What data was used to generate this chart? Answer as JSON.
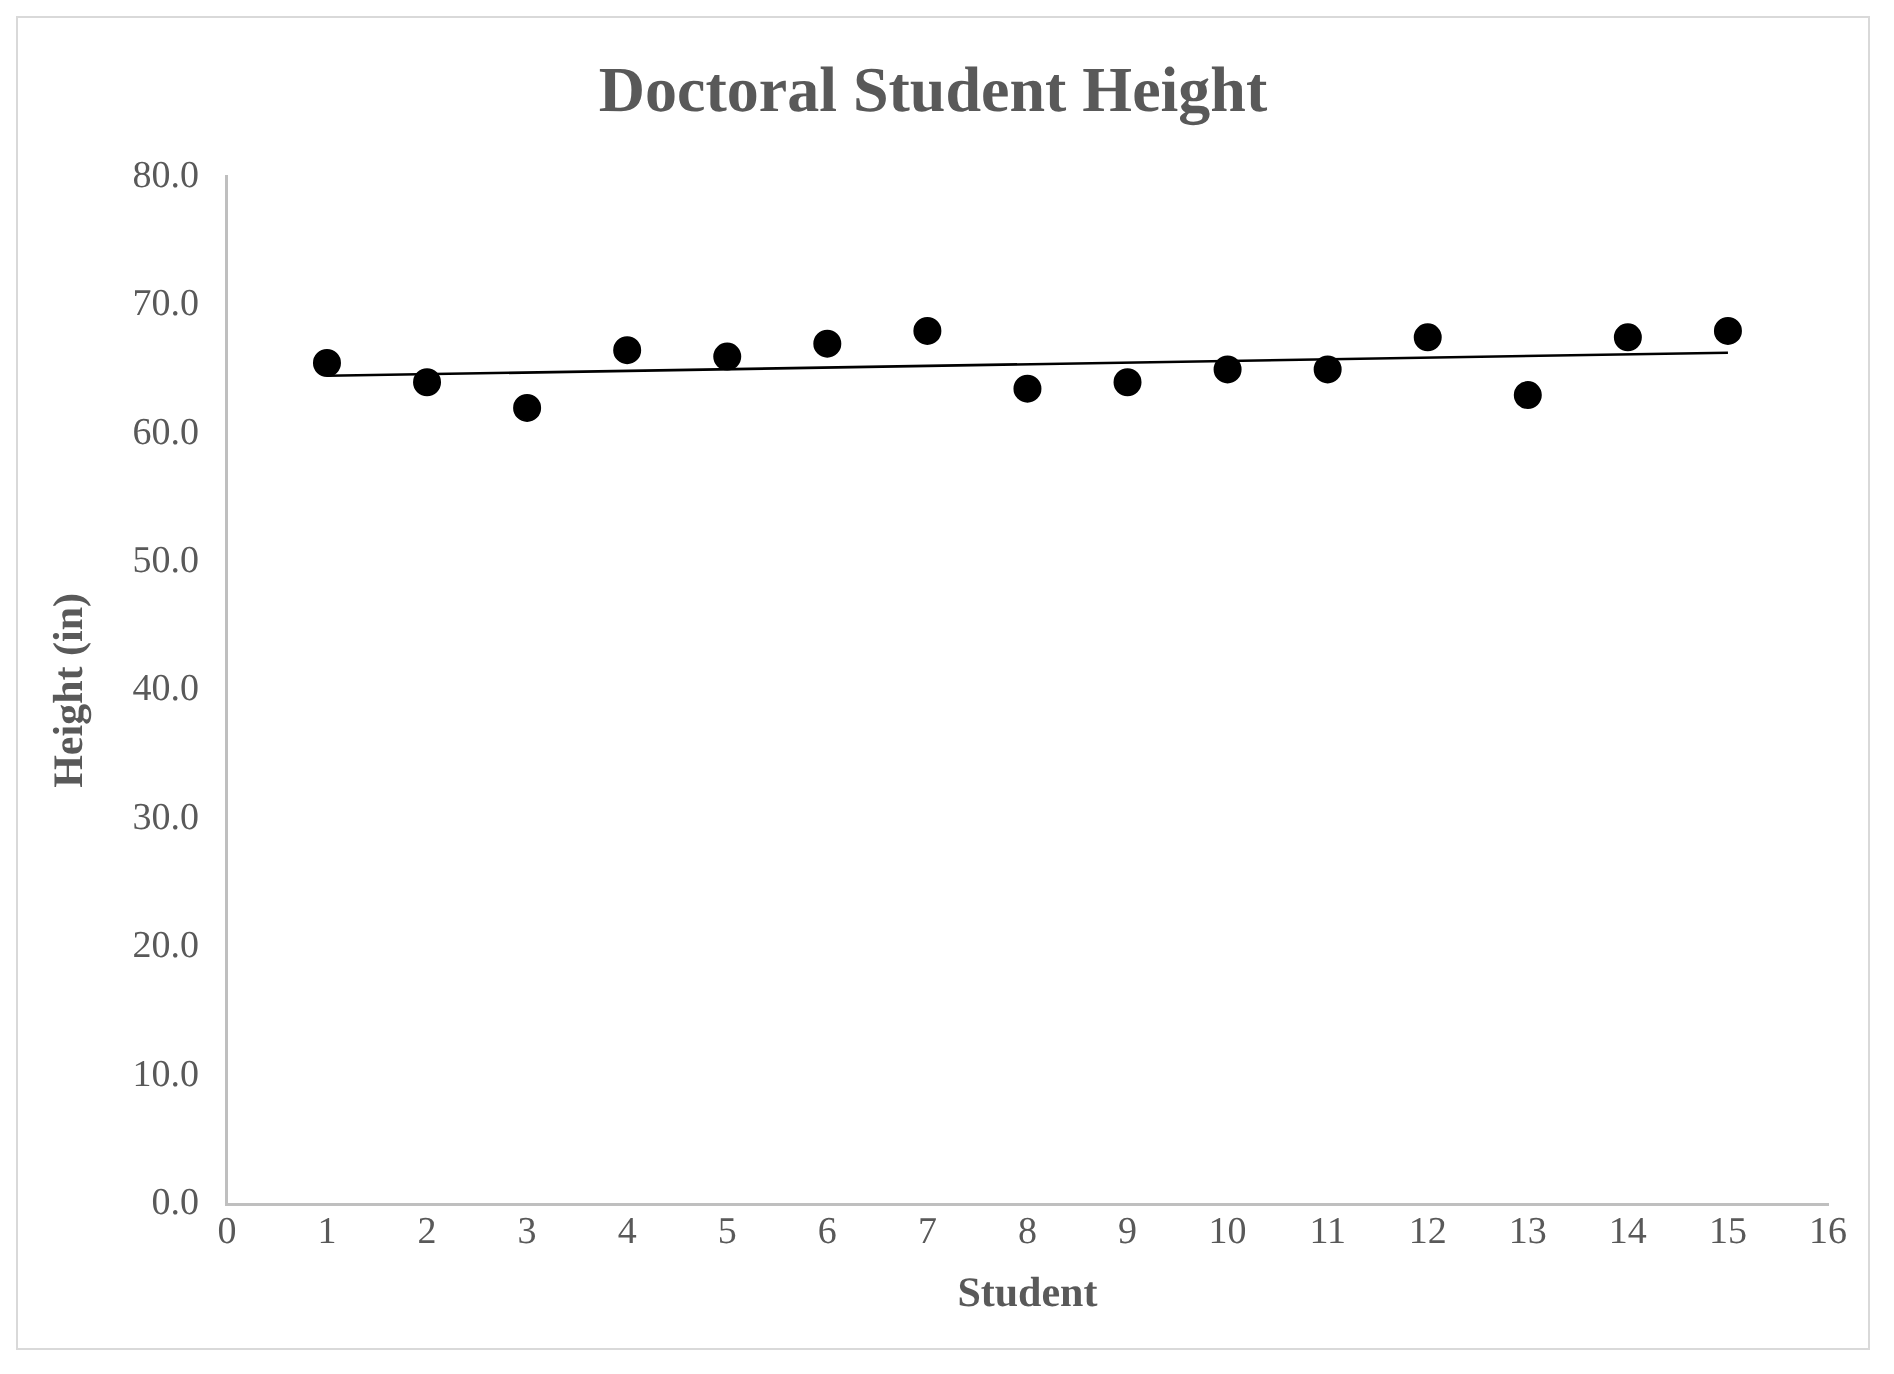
{
  "chart_data": {
    "type": "scatter",
    "title": "Doctoral Student Height",
    "xlabel": "Student",
    "ylabel": "Height (in)",
    "x": [
      1,
      2,
      3,
      4,
      5,
      6,
      7,
      8,
      9,
      10,
      11,
      12,
      13,
      14,
      15
    ],
    "series": [
      {
        "color": "#000000",
        "values": [
          65.5,
          64,
          62,
          66.5,
          66,
          67,
          68,
          63.5,
          64,
          65,
          65,
          67.5,
          63,
          67.5,
          68
        ]
      },
      {
        "type": "line",
        "color": "#000000",
        "x": [
          1,
          15
        ],
        "values": [
          64.5,
          66.3
        ],
        "marker": "none"
      }
    ],
    "xlim": [
      0,
      16
    ],
    "xticks": [
      0,
      1,
      2,
      3,
      4,
      5,
      6,
      7,
      8,
      9,
      10,
      11,
      12,
      13,
      14,
      15,
      16
    ],
    "ylim": [
      0,
      80
    ],
    "yticks": [
      {
        "value": 0,
        "label": "0.0"
      },
      {
        "value": 10,
        "label": "10.0"
      },
      {
        "value": 20,
        "label": "20.0"
      },
      {
        "value": 30,
        "label": "30.0"
      },
      {
        "value": 40,
        "label": "40.0"
      },
      {
        "value": 50,
        "label": "50.0"
      },
      {
        "value": 60,
        "label": "60.0"
      },
      {
        "value": 70,
        "label": "70.0"
      },
      {
        "value": 80,
        "label": "80.0"
      }
    ],
    "grid": false,
    "legend": false,
    "marker": "circle"
  }
}
